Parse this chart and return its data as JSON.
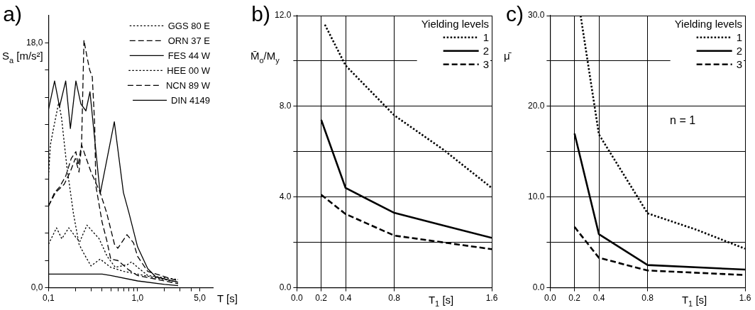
{
  "chart_data": [
    {
      "type": "line",
      "title": "a)",
      "xlabel": "T [s]",
      "ylabel": "S$_{a}$ [m/s²]",
      "log": "x",
      "grid": false,
      "legend": "top right",
      "marker": "none",
      "xlim": [
        0.1,
        7
      ],
      "xticks": [
        {
          "value": 0.1,
          "label": "0,1"
        },
        {
          "value": 0.2,
          "label": null
        },
        {
          "value": 0.3,
          "label": null
        },
        {
          "value": 0.4,
          "label": null
        },
        {
          "value": 0.5,
          "label": null
        },
        {
          "value": 0.6,
          "label": null
        },
        {
          "value": 0.7,
          "label": null
        },
        {
          "value": 0.8,
          "label": null
        },
        {
          "value": 0.9,
          "label": null
        },
        {
          "value": 1,
          "label": "1,0"
        },
        {
          "value": 2,
          "label": null
        },
        {
          "value": 3,
          "label": null
        },
        {
          "value": 4,
          "label": null
        },
        {
          "value": 5,
          "label": "5,0"
        }
      ],
      "ylim": [
        0,
        20
      ],
      "yticks": [
        {
          "value": 0,
          "label": "0,0"
        },
        {
          "value": 2,
          "label": null
        },
        {
          "value": 4,
          "label": null
        },
        {
          "value": 6,
          "label": null
        },
        {
          "value": 8,
          "label": null
        },
        {
          "value": 10,
          "label": null
        },
        {
          "value": 12,
          "label": null
        },
        {
          "value": 14,
          "label": null
        },
        {
          "value": 16,
          "label": null
        },
        {
          "value": 18,
          "label": "18,0"
        }
      ],
      "series": [
        {
          "name": "GGS 80 E",
          "color": "#000000",
          "line_style": "dotted",
          "x": [
            0.1,
            0.105,
            0.113,
            0.13,
            0.14,
            0.16,
            0.19,
            0.22,
            0.25,
            0.3,
            0.38,
            0.5,
            0.7,
            1.0,
            2.85
          ],
          "values": [
            8.2,
            10.5,
            11.6,
            13.6,
            12.5,
            9.0,
            5.5,
            3.2,
            2.5,
            1.6,
            2.1,
            1.5,
            1.2,
            1.0,
            0.4
          ]
        },
        {
          "name": "ORN 37 E",
          "color": "#000000",
          "line_style": "dashed",
          "x": [
            0.1,
            0.12,
            0.15,
            0.175,
            0.2,
            0.22,
            0.235,
            0.25,
            0.27,
            0.29,
            0.31,
            0.33,
            0.34,
            0.4,
            0.45,
            0.5,
            0.6,
            0.8,
            1.0,
            2.85
          ],
          "values": [
            6.0,
            7.0,
            7.6,
            8.5,
            9.5,
            8.5,
            10.5,
            18.2,
            17.0,
            16.0,
            15.5,
            12.0,
            7.5,
            4.8,
            3.5,
            2.1,
            2.0,
            1.3,
            0.9,
            0.3
          ]
        },
        {
          "name": "FES 44 W",
          "color": "#000000",
          "line_style": "solid",
          "x": [
            0.1,
            0.117,
            0.133,
            0.156,
            0.176,
            0.203,
            0.231,
            0.263,
            0.292,
            0.38,
            0.548,
            0.693,
            0.8,
            1.0,
            1.3,
            1.6,
            2.85
          ],
          "values": [
            13.1,
            15.2,
            13.3,
            15.2,
            11.7,
            15.2,
            13.5,
            13.0,
            14.4,
            6.9,
            12.2,
            7.0,
            5.5,
            3.0,
            1.4,
            0.8,
            0.4
          ]
        },
        {
          "name": "HEE 00 W",
          "color": "#000000",
          "line_style": "dotted",
          "x": [
            0.1,
            0.123,
            0.141,
            0.169,
            0.203,
            0.225,
            0.27,
            0.316,
            0.37,
            0.456,
            0.562,
            0.77,
            0.855,
            1.0,
            1.3,
            2.85
          ],
          "values": [
            3.2,
            4.4,
            3.6,
            4.4,
            3.7,
            3.4,
            4.6,
            4.1,
            3.6,
            2.3,
            1.5,
            1.7,
            1.9,
            1.5,
            0.9,
            0.6
          ]
        },
        {
          "name": "NCN 89 W",
          "color": "#000000",
          "line_style": "dashed",
          "x": [
            0.1,
            0.117,
            0.133,
            0.156,
            0.18,
            0.203,
            0.215,
            0.235,
            0.3,
            0.38,
            0.45,
            0.55,
            0.6,
            0.76,
            0.9,
            1.0,
            1.3,
            2.85
          ],
          "values": [
            6.0,
            7.0,
            7.4,
            8.2,
            9.5,
            10.0,
            9.0,
            10.5,
            8.5,
            7.0,
            5.5,
            3.2,
            2.9,
            3.9,
            3.3,
            2.3,
            1.2,
            0.5
          ]
        },
        {
          "name": "DIN 4149",
          "color": "#000000",
          "line_style": "solid",
          "x": [
            0.1,
            0.4,
            0.5,
            1.0,
            2.0,
            2.85
          ],
          "values": [
            1.0,
            1.0,
            0.9,
            0.5,
            0.25,
            0.15
          ]
        }
      ]
    },
    {
      "type": "line",
      "title": "b)",
      "xlabel": "T$_{1}$ [s]",
      "ylabel": "M̄$_{o}$/M$_{y}$",
      "legend_title": "Yielding levels",
      "grid": true,
      "legend": "top right",
      "marker": "none",
      "xlim": [
        0,
        1.6
      ],
      "xticks": [
        {
          "value": 0,
          "label": "0.0"
        },
        {
          "value": 0.2,
          "label": "0.2"
        },
        {
          "value": 0.4,
          "label": "0.4"
        },
        {
          "value": 0.8,
          "label": "0.8"
        },
        {
          "value": 1.6,
          "label": "1.6"
        }
      ],
      "ylim": [
        0,
        12
      ],
      "yticks": [
        {
          "value": 0,
          "label": "0.0"
        },
        {
          "value": 2,
          "label": null
        },
        {
          "value": 4,
          "label": "4.0"
        },
        {
          "value": 6,
          "label": null
        },
        {
          "value": 8,
          "label": "8.0"
        },
        {
          "value": 10,
          "label": null
        },
        {
          "value": 12,
          "label": "12.0"
        }
      ],
      "series": [
        {
          "name": "1",
          "color": "#000000",
          "line_style": "dotted",
          "x": [
            0.23,
            0.4,
            0.8,
            1.2,
            1.6
          ],
          "values": [
            11.6,
            9.8,
            7.6,
            6.1,
            4.4
          ]
        },
        {
          "name": "2",
          "color": "#000000",
          "line_style": "solid",
          "x": [
            0.2,
            0.4,
            0.8,
            1.2,
            1.6
          ],
          "values": [
            7.4,
            4.4,
            3.3,
            2.75,
            2.2
          ]
        },
        {
          "name": "3",
          "color": "#000000",
          "line_style": "dashed",
          "x": [
            0.2,
            0.4,
            0.8,
            1.2,
            1.6
          ],
          "values": [
            4.1,
            3.25,
            2.3,
            2.0,
            1.7
          ]
        }
      ]
    },
    {
      "type": "line",
      "title": "c)",
      "xlabel": "T$_{1}$ [s]",
      "ylabel": "μ̄",
      "legend_title": "Yielding levels",
      "grid": true,
      "legend": "top right",
      "marker": "none",
      "annotations": [
        "n = 1"
      ],
      "xlim": [
        0,
        1.6
      ],
      "xticks": [
        {
          "value": 0,
          "label": "0.0"
        },
        {
          "value": 0.2,
          "label": "0.2"
        },
        {
          "value": 0.4,
          "label": "0.4"
        },
        {
          "value": 0.8,
          "label": "0.8"
        },
        {
          "value": 1.6,
          "label": "1.6"
        }
      ],
      "ylim": [
        0,
        30
      ],
      "yticks": [
        {
          "value": 0,
          "label": "0.0"
        },
        {
          "value": 5,
          "label": null
        },
        {
          "value": 10,
          "label": "10.0"
        },
        {
          "value": 15,
          "label": null
        },
        {
          "value": 20,
          "label": "20.0"
        },
        {
          "value": 25,
          "label": null
        },
        {
          "value": 30,
          "label": "30.0"
        }
      ],
      "series": [
        {
          "name": "1",
          "color": "#000000",
          "line_style": "dotted",
          "x": [
            0.25,
            0.33,
            0.4,
            0.8,
            1.2,
            1.6
          ],
          "values": [
            30,
            23,
            16.9,
            8.2,
            6.4,
            4.3
          ]
        },
        {
          "name": "2",
          "color": "#000000",
          "line_style": "solid",
          "x": [
            0.2,
            0.4,
            0.8,
            1.6
          ],
          "values": [
            17.0,
            5.9,
            2.5,
            2.0
          ]
        },
        {
          "name": "3",
          "color": "#000000",
          "line_style": "dashed",
          "x": [
            0.2,
            0.4,
            0.8,
            1.6
          ],
          "values": [
            6.7,
            3.3,
            1.9,
            1.4
          ]
        }
      ]
    }
  ]
}
